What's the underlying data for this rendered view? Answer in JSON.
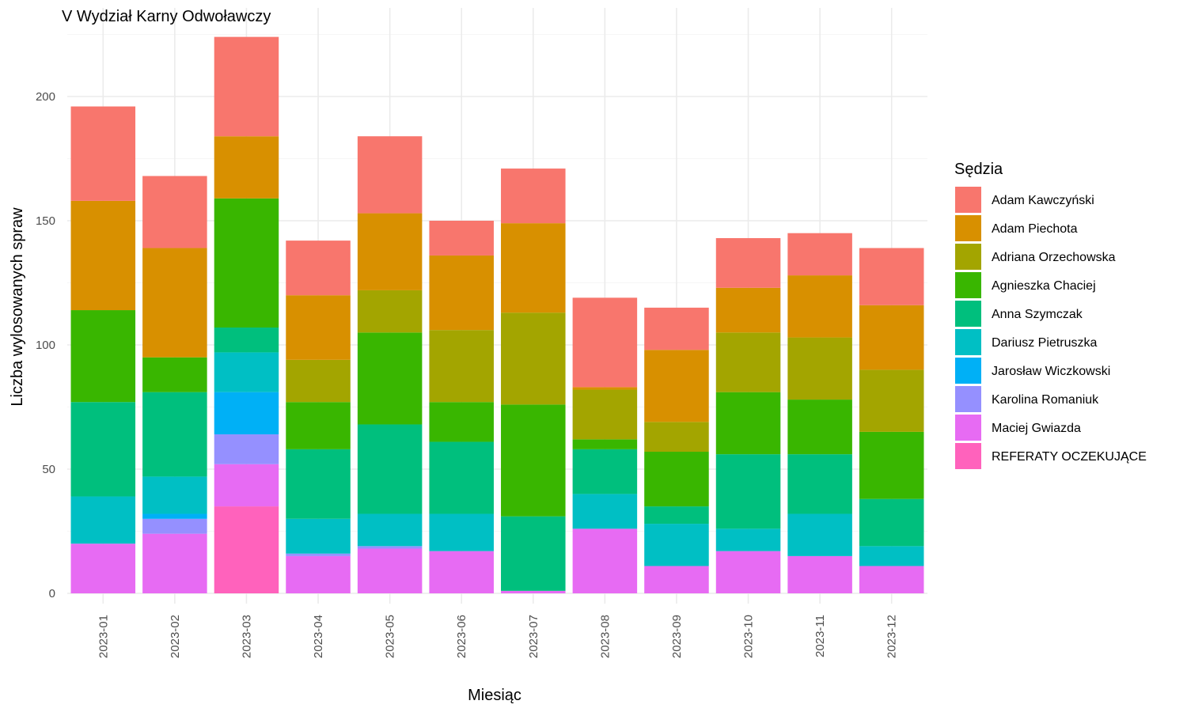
{
  "chart_data": {
    "type": "bar",
    "stacked": true,
    "title": "V Wydział Karny Odwoławczy",
    "xlabel": "Miesiąc",
    "ylabel": "Liczba wylosowanych spraw",
    "ylim": [
      0,
      225
    ],
    "yticks": [
      0,
      50,
      100,
      150,
      200
    ],
    "grid": true,
    "legend_title": "Sędzia",
    "legend_position": "right",
    "categories": [
      "2023-01",
      "2023-02",
      "2023-03",
      "2023-04",
      "2023-05",
      "2023-06",
      "2023-07",
      "2023-08",
      "2023-09",
      "2023-10",
      "2023-11",
      "2023-12"
    ],
    "series": [
      {
        "name": "Adam Kawczyński",
        "color": "#F8766D",
        "values": [
          38,
          29,
          40,
          22,
          31,
          14,
          22,
          36,
          17,
          20,
          17,
          23
        ]
      },
      {
        "name": "Adam Piechota",
        "color": "#D89000",
        "values": [
          44,
          44,
          25,
          26,
          31,
          30,
          36,
          1,
          29,
          18,
          25,
          26
        ]
      },
      {
        "name": "Adriana Orzechowska",
        "color": "#A3A500",
        "values": [
          0,
          0,
          0,
          17,
          17,
          29,
          37,
          20,
          12,
          24,
          25,
          25
        ]
      },
      {
        "name": "Agnieszka Chaciej",
        "color": "#39B600",
        "values": [
          37,
          14,
          52,
          19,
          37,
          16,
          45,
          4,
          22,
          25,
          22,
          27
        ]
      },
      {
        "name": "Anna Szymczak",
        "color": "#00BF7D",
        "values": [
          38,
          34,
          10,
          28,
          36,
          29,
          30,
          18,
          7,
          30,
          24,
          19
        ]
      },
      {
        "name": "Dariusz Pietruszka",
        "color": "#00BFC4",
        "values": [
          19,
          15,
          16,
          14,
          13,
          15,
          0,
          14,
          17,
          9,
          17,
          8
        ]
      },
      {
        "name": "Jarosław Wiczkowski",
        "color": "#00B0F6",
        "values": [
          0,
          2,
          17,
          0,
          0,
          0,
          0,
          0,
          0,
          0,
          0,
          0
        ]
      },
      {
        "name": "Karolina Romaniuk",
        "color": "#9590FF",
        "values": [
          0,
          6,
          12,
          1,
          1,
          0,
          0,
          0,
          0,
          0,
          0,
          0
        ]
      },
      {
        "name": "Maciej Gwiazda",
        "color": "#E76BF3",
        "values": [
          20,
          24,
          17,
          15,
          18,
          17,
          1,
          26,
          11,
          17,
          15,
          11
        ]
      },
      {
        "name": "REFERATY OCZEKUJĄCE",
        "color": "#FF62BC",
        "values": [
          0,
          0,
          35,
          0,
          0,
          0,
          0,
          0,
          0,
          0,
          0,
          0
        ]
      }
    ]
  }
}
